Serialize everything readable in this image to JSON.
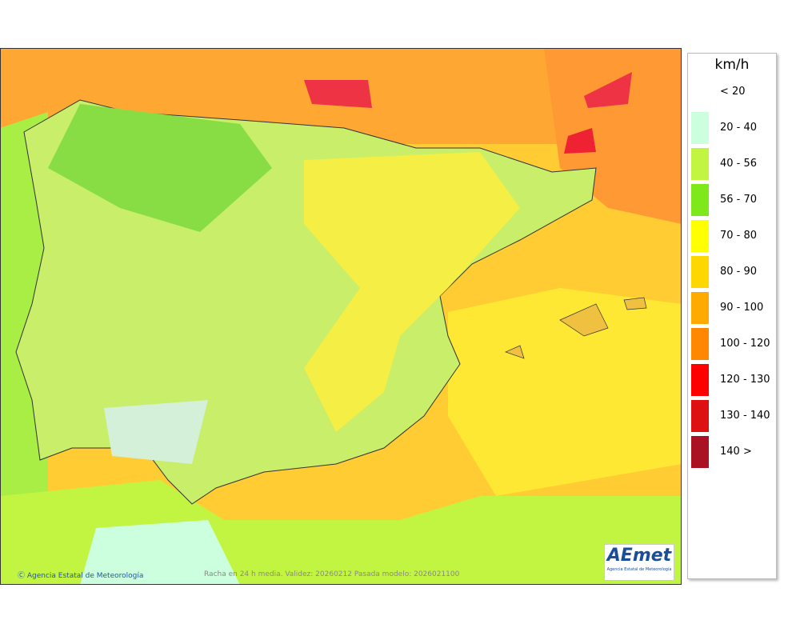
{
  "legend": {
    "title": "km/h",
    "items": [
      {
        "label": "< 20",
        "color": "#ffffff"
      },
      {
        "label": "20 - 40",
        "color": "#ccffdd"
      },
      {
        "label": "40 - 56",
        "color": "#c2f542"
      },
      {
        "label": "56 - 70",
        "color": "#7ee81a"
      },
      {
        "label": "70 - 80",
        "color": "#ffff00"
      },
      {
        "label": "80 - 90",
        "color": "#ffd700"
      },
      {
        "label": "90 - 100",
        "color": "#ffaa00"
      },
      {
        "label": "100 - 120",
        "color": "#ff8800"
      },
      {
        "label": "120 - 130",
        "color": "#ff0000"
      },
      {
        "label": "130 - 140",
        "color": "#dd1111"
      },
      {
        "label": "140 >",
        "color": "#aa1122"
      }
    ]
  },
  "footer": {
    "credit": "Ⓒ Agencia Estatal de Meteorología",
    "caption": "Racha en 24 h media. Validez: 20260212 Pasada modelo: 2026021100"
  },
  "logo": {
    "name": "AEmet",
    "subtitle": "Agencia Estatal de Meteorología"
  }
}
